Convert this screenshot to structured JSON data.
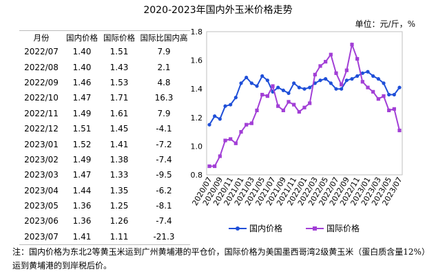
{
  "title": "2020-2023年国内外玉米价格走势",
  "unit": "单位：元/斤，%",
  "table": {
    "headers": [
      "月份",
      "国内价格",
      "国际价格",
      "国际比国内高"
    ],
    "rows": [
      [
        "2022/07",
        "1.40",
        "1.51",
        "7.9"
      ],
      [
        "2022/08",
        "1.40",
        "1.43",
        "2.1"
      ],
      [
        "2022/09",
        "1.46",
        "1.53",
        "4.8"
      ],
      [
        "2022/10",
        "1.47",
        "1.71",
        "16.3"
      ],
      [
        "2022/11",
        "1.49",
        "1.61",
        "7.9"
      ],
      [
        "2022/12",
        "1.51",
        "1.45",
        "-4.1"
      ],
      [
        "2023/01",
        "1.52",
        "1.41",
        "-7.2"
      ],
      [
        "2023/02",
        "1.49",
        "1.38",
        "-7.4"
      ],
      [
        "2023/03",
        "1.47",
        "1.33",
        "-9.5"
      ],
      [
        "2023/04",
        "1.44",
        "1.35",
        "-6.2"
      ],
      [
        "2023/05",
        "1.36",
        "1.25",
        "-8.1"
      ],
      [
        "2023/06",
        "1.36",
        "1.26",
        "-7.4"
      ],
      [
        "2023/07",
        "1.41",
        "1.11",
        "-21.3"
      ]
    ]
  },
  "chart_data": {
    "type": "line",
    "ylim": [
      0.8,
      1.8
    ],
    "yticks": [
      "0.8",
      "1.0",
      "1.2",
      "1.4",
      "1.6",
      "1.8"
    ],
    "xtick_labels": [
      "2020/07",
      "2020/09",
      "2020/11",
      "2021/01",
      "2021/03",
      "2021/05",
      "2021/07",
      "2021/09",
      "2021/11",
      "2022/01",
      "2022/03",
      "2022/05",
      "2022/07",
      "2022/09",
      "2022/11",
      "2023/01",
      "2023/03",
      "2023/05",
      "2023/07"
    ],
    "x": [
      "2020/07",
      "2020/08",
      "2020/09",
      "2020/10",
      "2020/11",
      "2020/12",
      "2021/01",
      "2021/02",
      "2021/03",
      "2021/04",
      "2021/05",
      "2021/06",
      "2021/07",
      "2021/08",
      "2021/09",
      "2021/10",
      "2021/11",
      "2021/12",
      "2022/01",
      "2022/02",
      "2022/03",
      "2022/04",
      "2022/05",
      "2022/06",
      "2022/07",
      "2022/08",
      "2022/09",
      "2022/10",
      "2022/11",
      "2022/12",
      "2023/01",
      "2023/02",
      "2023/03",
      "2023/04",
      "2023/05",
      "2023/06",
      "2023/07"
    ],
    "series": [
      {
        "name": "国内价格",
        "color": "#1f4fd8",
        "marker": "circle",
        "values": [
          1.15,
          1.21,
          1.19,
          1.28,
          1.29,
          1.34,
          1.44,
          1.48,
          1.44,
          1.42,
          1.49,
          1.46,
          1.38,
          1.41,
          1.39,
          1.37,
          1.44,
          1.41,
          1.4,
          1.41,
          1.44,
          1.46,
          1.47,
          1.44,
          1.4,
          1.4,
          1.46,
          1.47,
          1.49,
          1.51,
          1.52,
          1.49,
          1.47,
          1.44,
          1.36,
          1.36,
          1.41
        ]
      },
      {
        "name": "国际价格",
        "color": "#a23fd6",
        "marker": "square",
        "values": [
          0.86,
          0.86,
          0.93,
          1.04,
          1.05,
          1.02,
          1.1,
          1.15,
          1.16,
          1.25,
          1.36,
          1.35,
          1.42,
          1.28,
          1.25,
          1.31,
          1.29,
          1.24,
          1.27,
          1.3,
          1.5,
          1.56,
          1.59,
          1.64,
          1.51,
          1.43,
          1.53,
          1.71,
          1.61,
          1.45,
          1.41,
          1.38,
          1.33,
          1.35,
          1.25,
          1.26,
          1.11
        ]
      }
    ],
    "legend": "bottom"
  },
  "note": "注：国内价格为东北2等黄玉米运到广州黄埔港的平仓价，国际价格为美国墨西哥湾2级黄玉米（蛋白质含量12%）运到黄埔港的到岸税后价。"
}
